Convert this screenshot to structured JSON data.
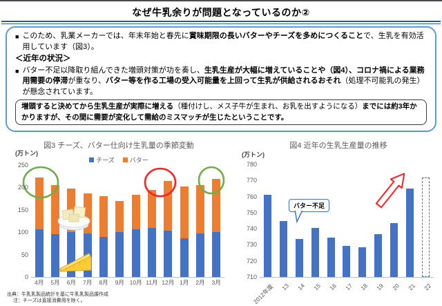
{
  "page": {
    "title": "なぜ牛乳余りが問題となっているのか②"
  },
  "info_box": {
    "bullet_marker": "■",
    "bullet1": {
      "pre": "このため、乳業メーカーでは、年末年始と春先に",
      "bold": "賞味期限の長いバターやチーズを多めにつくること",
      "post": "で、生乳を有効活用しています（図3）。"
    },
    "section_heading": "＜近年の状況＞",
    "bullet2": {
      "pre": "バター不足以降取り組んできた増頭対策が功を奏し、",
      "bold1": "生乳生産が大幅に増えていることや（図4）、コロナ禍による業務用需要の停滞",
      "mid": "が重なり、",
      "bold2": "バター等を作る工場の受入可能量を上回って生乳が供給されるおそれ",
      "post": "（処理不可能乳の発生）が懸念されています。"
    },
    "highlight": {
      "bold1": "増頭すると決めてから生乳生産が実際に増える",
      "normal": "（種付けし、メス子牛が生まれ、お乳を出すようになる）",
      "bold2": "までには約3年かかりますが、その間に需要が変化して需給のミスマッチが生じたということです。"
    }
  },
  "chart_data": [
    {
      "id": "fig3",
      "type": "bar",
      "stacked": true,
      "title": "図3 チーズ、バター仕向け生乳量の季節変動",
      "unit_label": "(万トン)",
      "categories": [
        "4月",
        "5月",
        "6月",
        "7月",
        "8月",
        "9月",
        "10月",
        "11月",
        "12月",
        "1月",
        "2月",
        "3月"
      ],
      "series": [
        {
          "name": "チーズ",
          "color": "#4472C4",
          "values": [
            107,
            95,
            100,
            97,
            90,
            100,
            106,
            110,
            104,
            86,
            98,
            101
          ]
        },
        {
          "name": "バター",
          "color": "#ED7D31",
          "values": [
            115,
            110,
            97,
            90,
            90,
            70,
            77,
            85,
            111,
            117,
            107,
            119
          ]
        }
      ],
      "ylim": [
        0,
        250
      ],
      "yticks": [
        0,
        50,
        100,
        150,
        200,
        250
      ],
      "legend_position": "top",
      "grid": false,
      "annotations": [
        "green circle on 4月-5月 peaks",
        "red circle on 12月 peak",
        "green circle on 3月 peak",
        "butter clip-art",
        "cheese clip-art"
      ]
    },
    {
      "id": "fig4",
      "type": "bar",
      "title": "図4 近年の生乳生産量の推移",
      "unit_label": "(万トン)",
      "categories": [
        "2012年度",
        "13",
        "14",
        "15",
        "16",
        "17",
        "18",
        "19",
        "20",
        "21",
        "22"
      ],
      "values": [
        761,
        745,
        733.5,
        740.5,
        734.5,
        729.5,
        728.5,
        736.5,
        743.5,
        765,
        772
      ],
      "dashed_indices": [
        10
      ],
      "bar_color": "#4472C4",
      "ylim": [
        710,
        780
      ],
      "yticks": [
        710,
        720,
        730,
        740,
        750,
        760,
        770,
        780
      ],
      "grid": false,
      "callout": {
        "text": "バター不足",
        "points_to": "14"
      },
      "annotations": [
        "red hollow up-right arrow between 20 and 22"
      ]
    }
  ],
  "footnotes": {
    "source": "出典：牛乳乳製品統計を基に牛乳乳製品課作成",
    "note": "注：チーズは直接消費用を除く。"
  },
  "colors": {
    "accent_blue": "#4472C4",
    "accent_orange": "#ED7D31",
    "outer_box_border": "#5B9BD5",
    "highlight_box_border": "#3a3a3a",
    "annotation_green": "#6FAE46",
    "annotation_red": "#FF2020",
    "axis_text": "#595959"
  }
}
